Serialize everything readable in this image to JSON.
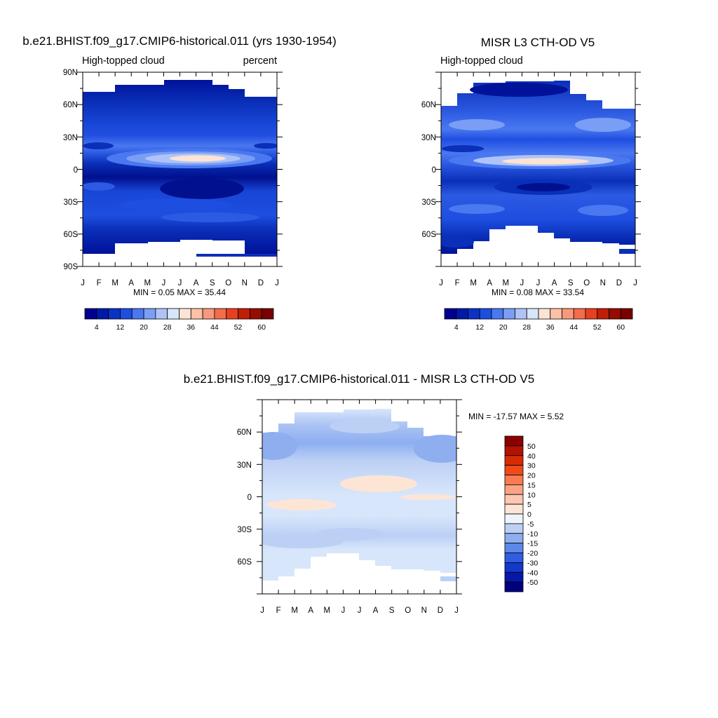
{
  "panels": [
    {
      "title": "b.e21.BHIST.f09_g17.CMIP6-historical.011 (yrs 1930-1954)",
      "left_label": "High-topped cloud",
      "right_label": "percent",
      "stats": "MIN =   0.05 MAX =  35.44",
      "lat_labels": [
        "90N",
        "60N",
        "30N",
        "0",
        "30S",
        "60S",
        "90S"
      ],
      "month_labels": [
        "J",
        "F",
        "M",
        "A",
        "M",
        "J",
        "J",
        "A",
        "S",
        "O",
        "N",
        "D",
        "J"
      ]
    },
    {
      "title": "MISR L3 CTH-OD V5",
      "left_label": "High-topped cloud",
      "right_label": "",
      "stats": "MIN =   0.08 MAX =  33.54",
      "lat_labels": [
        "60N",
        "30N",
        "0",
        "30S",
        "60S"
      ],
      "month_labels": [
        "J",
        "F",
        "M",
        "A",
        "M",
        "J",
        "J",
        "A",
        "S",
        "O",
        "N",
        "D",
        "J"
      ]
    },
    {
      "title": "b.e21.BHIST.f09_g17.CMIP6-historical.011 - MISR L3 CTH-OD V5",
      "stats": "MIN = -17.57 MAX =   5.52",
      "lat_labels": [
        "60N",
        "30N",
        "0",
        "30S",
        "60S"
      ],
      "month_labels": [
        "J",
        "F",
        "M",
        "A",
        "M",
        "J",
        "J",
        "A",
        "S",
        "O",
        "N",
        "D",
        "J"
      ]
    }
  ],
  "colorbar_horizontal": {
    "labels": [
      "4",
      "12",
      "20",
      "28",
      "36",
      "44",
      "52",
      "60"
    ],
    "colors": [
      "#000090",
      "#0019a8",
      "#0a32c4",
      "#1e4ee0",
      "#4a78f0",
      "#7a9ef5",
      "#aec4f8",
      "#d8e6fb",
      "#fde3d3",
      "#fcc0a6",
      "#f8987c",
      "#f46c4a",
      "#e8401e",
      "#c01e08",
      "#960c00",
      "#780000"
    ]
  },
  "colorbar_vertical": {
    "labels": [
      "50",
      "40",
      "30",
      "20",
      "15",
      "10",
      "5",
      "0",
      "-5",
      "-10",
      "-15",
      "-20",
      "-30",
      "-40",
      "-50"
    ],
    "colors": [
      "#8b0000",
      "#b31200",
      "#d92b00",
      "#f04a18",
      "#f87b52",
      "#f9a484",
      "#fcc8b0",
      "#fde5d6",
      "#eef4fc",
      "#bcd0f5",
      "#8eaef0",
      "#5c88ea",
      "#2f5ee0",
      "#1238cc",
      "#0618a8",
      "#000080"
    ]
  },
  "chart_data": [
    {
      "type": "heatmap",
      "title": "b.e21.BHIST.f09_g17.CMIP6-historical.011 (yrs 1930-1954)",
      "variable": "High-topped cloud",
      "units": "percent",
      "x": [
        "J",
        "F",
        "M",
        "A",
        "M",
        "J",
        "J",
        "A",
        "S",
        "O",
        "N",
        "D",
        "J"
      ],
      "y_labels": [
        "90N",
        "60N",
        "30N",
        "0",
        "30S",
        "60S",
        "90S"
      ],
      "ylim": [
        -90,
        90
      ],
      "min": 0.05,
      "max": 35.44,
      "bands": [
        {
          "lat_from": 72,
          "lat_to": 90,
          "value": 0
        },
        {
          "lat_from": 40,
          "lat_to": 72,
          "value": 4
        },
        {
          "lat_from": 25,
          "lat_to": 40,
          "value": 8
        },
        {
          "lat_from": 15,
          "lat_to": 25,
          "value": 12
        },
        {
          "lat_from": 3,
          "lat_to": 15,
          "value": 24
        },
        {
          "lat_from": -10,
          "lat_to": 3,
          "value": 16
        },
        {
          "lat_from": -28,
          "lat_to": -10,
          "value": 8
        },
        {
          "lat_from": -60,
          "lat_to": -28,
          "value": 12
        },
        {
          "lat_from": -78,
          "lat_to": -60,
          "value": 4
        }
      ],
      "peak": {
        "lat": 8,
        "month": "A",
        "value": 35
      }
    },
    {
      "type": "heatmap",
      "title": "MISR L3 CTH-OD V5",
      "variable": "High-topped cloud",
      "x": [
        "J",
        "F",
        "M",
        "A",
        "M",
        "J",
        "J",
        "A",
        "S",
        "O",
        "N",
        "D",
        "J"
      ],
      "y_labels": [
        "60N",
        "30N",
        "0",
        "30S",
        "60S"
      ],
      "ylim": [
        -90,
        90
      ],
      "min": 0.08,
      "max": 33.54,
      "bands": [
        {
          "lat_from": 60,
          "lat_to": 82,
          "value": 4
        },
        {
          "lat_from": 38,
          "lat_to": 60,
          "value": 12
        },
        {
          "lat_from": 15,
          "lat_to": 38,
          "value": 16
        },
        {
          "lat_from": 3,
          "lat_to": 15,
          "value": 24
        },
        {
          "lat_from": -10,
          "lat_to": 3,
          "value": 16
        },
        {
          "lat_from": -28,
          "lat_to": -10,
          "value": 8
        },
        {
          "lat_from": -55,
          "lat_to": -28,
          "value": 16
        },
        {
          "lat_from": -78,
          "lat_to": -55,
          "value": 8
        }
      ],
      "peak": {
        "lat": 8,
        "month": "A",
        "value": 33
      }
    },
    {
      "type": "heatmap",
      "title": "b.e21.BHIST.f09_g17.CMIP6-historical.011 - MISR L3 CTH-OD V5",
      "x": [
        "J",
        "F",
        "M",
        "A",
        "M",
        "J",
        "J",
        "A",
        "S",
        "O",
        "N",
        "D",
        "J"
      ],
      "y_labels": [
        "60N",
        "30N",
        "0",
        "30S",
        "60S"
      ],
      "ylim": [
        -90,
        90
      ],
      "min": -17.57,
      "max": 5.52,
      "bands": [
        {
          "lat_from": 50,
          "lat_to": 82,
          "value": -10
        },
        {
          "lat_from": 25,
          "lat_to": 50,
          "value": -5
        },
        {
          "lat_from": 5,
          "lat_to": 25,
          "value": -5
        },
        {
          "lat_from": -10,
          "lat_to": 5,
          "value": 5
        },
        {
          "lat_from": -28,
          "lat_to": -10,
          "value": -5
        },
        {
          "lat_from": -45,
          "lat_to": -28,
          "value": -10
        },
        {
          "lat_from": -78,
          "lat_to": -45,
          "value": -5
        }
      ]
    }
  ]
}
